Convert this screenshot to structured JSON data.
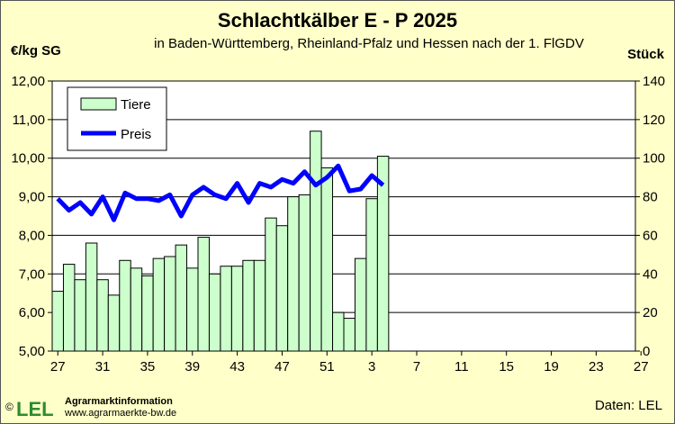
{
  "title": "Schlachtkälber E - P 2025",
  "subtitle": "in Baden-Württemberg, Rheinland-Pfalz  und Hessen  nach der 1. FlGDV",
  "footer": {
    "source": "Daten:  LEL",
    "copyright": "©",
    "logo_text": "LEL",
    "org_name": "Agrarmarktinformation",
    "org_url": "www.agrarmaerkte-bw.de"
  },
  "colors": {
    "background": "#ffffc9",
    "plot_background": "#ffffff",
    "bar_fill": "#ccffcc",
    "line": "#0000ff",
    "logo_green": "#2e8b2e"
  },
  "chart_data": {
    "type": "bar",
    "title": "Schlachtkälber E - P 2025",
    "x_tick_labels": [
      "27",
      "31",
      "35",
      "39",
      "43",
      "47",
      "51",
      "3",
      "7",
      "11",
      "15",
      "19",
      "23",
      "27"
    ],
    "categories": [
      "27",
      "28",
      "29",
      "30",
      "31",
      "32",
      "33",
      "34",
      "35",
      "36",
      "37",
      "38",
      "39",
      "40",
      "41",
      "42",
      "43",
      "44",
      "45",
      "46",
      "47",
      "48",
      "49",
      "50",
      "51",
      "52",
      "1",
      "2",
      "3",
      "4"
    ],
    "y_left": {
      "label": "€/kg SG",
      "range": [
        5,
        12
      ],
      "ticks": [
        "5,00",
        "6,00",
        "7,00",
        "8,00",
        "9,00",
        "10,00",
        "11,00",
        "12,00"
      ]
    },
    "y_right": {
      "label": "Stück",
      "range": [
        0,
        140
      ],
      "ticks": [
        "0",
        "20",
        "40",
        "60",
        "80",
        "100",
        "120",
        "140"
      ]
    },
    "grid": "horizontal",
    "legend": {
      "position": "top-left",
      "entries": [
        "Tiere",
        "Preis"
      ]
    },
    "series": [
      {
        "name": "Tiere",
        "type": "bar",
        "axis": "right",
        "values": [
          31,
          45,
          37,
          56,
          37,
          29,
          47,
          43,
          39,
          48,
          49,
          55,
          43,
          59,
          40,
          44,
          44,
          47,
          47,
          69,
          65,
          80,
          81,
          114,
          95,
          20,
          17,
          48,
          79,
          101
        ]
      },
      {
        "name": "Preis",
        "type": "line",
        "axis": "left",
        "values": [
          8.95,
          8.65,
          8.85,
          8.55,
          9.0,
          8.4,
          9.1,
          8.95,
          8.95,
          8.9,
          9.05,
          8.5,
          9.05,
          9.25,
          9.05,
          8.95,
          9.35,
          8.85,
          9.35,
          9.25,
          9.45,
          9.35,
          9.65,
          9.3,
          9.5,
          9.8,
          9.15,
          9.2,
          9.55,
          9.3
        ]
      }
    ]
  }
}
